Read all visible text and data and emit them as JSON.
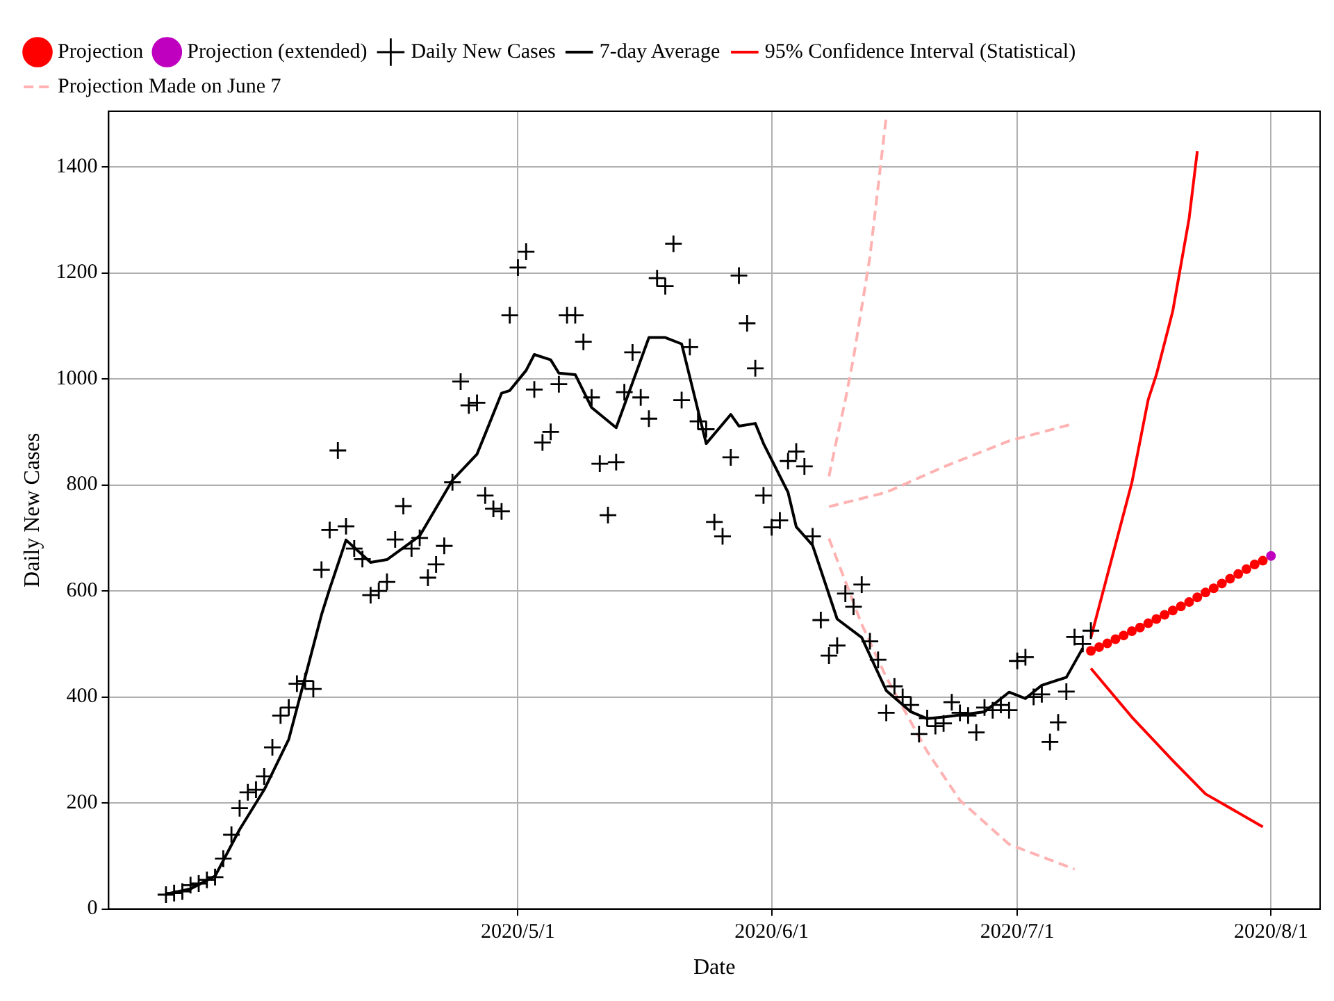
{
  "chart_data": {
    "type": "line",
    "xlabel": "Date",
    "ylabel": "Daily New Cases",
    "xlim": [
      "2020-03-12",
      "2020-08-07"
    ],
    "ylim": [
      0,
      1505
    ],
    "xticks": [
      {
        "value": "2020-05-01",
        "label": "2020/5/1"
      },
      {
        "value": "2020-06-01",
        "label": "2020/6/1"
      },
      {
        "value": "2020-07-01",
        "label": "2020/7/1"
      },
      {
        "value": "2020-08-01",
        "label": "2020/8/1"
      }
    ],
    "yticks": [
      0,
      200,
      400,
      600,
      800,
      1000,
      1200,
      1400
    ],
    "grid": true,
    "legend": "top",
    "series": [
      {
        "name": "Projection",
        "type": "scatter",
        "marker": "circle",
        "color": "#ff0000",
        "x": [
          "2020-07-10",
          "2020-07-11",
          "2020-07-12",
          "2020-07-13",
          "2020-07-14",
          "2020-07-15",
          "2020-07-16",
          "2020-07-17",
          "2020-07-18",
          "2020-07-19",
          "2020-07-20",
          "2020-07-21",
          "2020-07-22",
          "2020-07-23",
          "2020-07-24",
          "2020-07-25",
          "2020-07-26",
          "2020-07-27",
          "2020-07-28",
          "2020-07-29",
          "2020-07-30",
          "2020-07-31"
        ],
        "values": [
          487,
          494,
          501,
          509,
          516,
          524,
          531,
          539,
          547,
          555,
          563,
          571,
          579,
          588,
          597,
          605,
          614,
          623,
          632,
          641,
          650,
          657
        ]
      },
      {
        "name": "Projection (extended)",
        "type": "scatter",
        "marker": "circle",
        "color": "#bf00bf",
        "x": [
          "2020-08-01"
        ],
        "values": [
          666
        ]
      },
      {
        "name": "Daily New Cases",
        "type": "scatter",
        "marker": "cross",
        "color": "#000000",
        "x": [
          "2020-03-19",
          "2020-03-20",
          "2020-03-21",
          "2020-03-22",
          "2020-03-23",
          "2020-03-24",
          "2020-03-25",
          "2020-03-26",
          "2020-03-27",
          "2020-03-28",
          "2020-03-29",
          "2020-03-30",
          "2020-03-31",
          "2020-04-01",
          "2020-04-02",
          "2020-04-03",
          "2020-04-04",
          "2020-04-05",
          "2020-04-06",
          "2020-04-07",
          "2020-04-08",
          "2020-04-09",
          "2020-04-10",
          "2020-04-11",
          "2020-04-12",
          "2020-04-13",
          "2020-04-14",
          "2020-04-15",
          "2020-04-16",
          "2020-04-17",
          "2020-04-18",
          "2020-04-19",
          "2020-04-20",
          "2020-04-21",
          "2020-04-22",
          "2020-04-23",
          "2020-04-24",
          "2020-04-25",
          "2020-04-26",
          "2020-04-27",
          "2020-04-28",
          "2020-04-29",
          "2020-04-30",
          "2020-05-01",
          "2020-05-02",
          "2020-05-03",
          "2020-05-04",
          "2020-05-05",
          "2020-05-06",
          "2020-05-07",
          "2020-05-08",
          "2020-05-09",
          "2020-05-10",
          "2020-05-11",
          "2020-05-12",
          "2020-05-13",
          "2020-05-14",
          "2020-05-15",
          "2020-05-16",
          "2020-05-17",
          "2020-05-18",
          "2020-05-19",
          "2020-05-20",
          "2020-05-21",
          "2020-05-22",
          "2020-05-23",
          "2020-05-24",
          "2020-05-25",
          "2020-05-26",
          "2020-05-27",
          "2020-05-28",
          "2020-05-29",
          "2020-05-30",
          "2020-05-31",
          "2020-06-01",
          "2020-06-02",
          "2020-06-03",
          "2020-06-04",
          "2020-06-05",
          "2020-06-06",
          "2020-06-07",
          "2020-06-08",
          "2020-06-09",
          "2020-06-10",
          "2020-06-11",
          "2020-06-12",
          "2020-06-13",
          "2020-06-14",
          "2020-06-15",
          "2020-06-16",
          "2020-06-17",
          "2020-06-18",
          "2020-06-19",
          "2020-06-20",
          "2020-06-21",
          "2020-06-22",
          "2020-06-23",
          "2020-06-24",
          "2020-06-25",
          "2020-06-26",
          "2020-06-27",
          "2020-06-28",
          "2020-06-29",
          "2020-06-30",
          "2020-07-01",
          "2020-07-02",
          "2020-07-03",
          "2020-07-04",
          "2020-07-05",
          "2020-07-06",
          "2020-07-07",
          "2020-07-08",
          "2020-07-09",
          "2020-07-10"
        ],
        "values": [
          27,
          30,
          33,
          45,
          48,
          55,
          60,
          95,
          140,
          190,
          220,
          225,
          250,
          305,
          365,
          380,
          425,
          430,
          415,
          640,
          715,
          865,
          722,
          680,
          660,
          592,
          600,
          617,
          697,
          760,
          680,
          700,
          625,
          650,
          685,
          805,
          995,
          950,
          955,
          780,
          755,
          750,
          1120,
          1210,
          1240,
          980,
          880,
          900,
          990,
          1120,
          1120,
          1070,
          965,
          840,
          743,
          843,
          975,
          1050,
          965,
          925,
          1190,
          1175,
          1255,
          960,
          1060,
          920,
          905,
          730,
          703,
          852,
          1195,
          1105,
          1020,
          780,
          720,
          733,
          845,
          863,
          835,
          703,
          545,
          478,
          497,
          595,
          570,
          612,
          505,
          470,
          370,
          420,
          400,
          385,
          330,
          360,
          345,
          350,
          390,
          370,
          365,
          333,
          380,
          375,
          385,
          375,
          468,
          475,
          400,
          405,
          315,
          352,
          410,
          513,
          500,
          525
        ]
      },
      {
        "name": "7-day Average",
        "line_style": "solid",
        "color": "#000000",
        "x": [
          "2020-03-19",
          "2020-03-22",
          "2020-03-25",
          "2020-03-28",
          "2020-03-31",
          "2020-04-03",
          "2020-04-05",
          "2020-04-07",
          "2020-04-08",
          "2020-04-10",
          "2020-04-13",
          "2020-04-15",
          "2020-04-19",
          "2020-04-23",
          "2020-04-26",
          "2020-04-27",
          "2020-04-29",
          "2020-04-30",
          "2020-05-02",
          "2020-05-03",
          "2020-05-05",
          "2020-05-06",
          "2020-05-08",
          "2020-05-10",
          "2020-05-13",
          "2020-05-17",
          "2020-05-19",
          "2020-05-21",
          "2020-05-24",
          "2020-05-27",
          "2020-05-28",
          "2020-05-30",
          "2020-05-31",
          "2020-06-03",
          "2020-06-04",
          "2020-06-06",
          "2020-06-09",
          "2020-06-12",
          "2020-06-15",
          "2020-06-18",
          "2020-06-20",
          "2020-06-22",
          "2020-06-27",
          "2020-06-30",
          "2020-07-02",
          "2020-07-04",
          "2020-07-07",
          "2020-07-09"
        ],
        "values": [
          28,
          38,
          62,
          150,
          225,
          320,
          437,
          555,
          604,
          696,
          654,
          659,
          704,
          809,
          858,
          896,
          973,
          978,
          1016,
          1046,
          1036,
          1011,
          1008,
          946,
          908,
          1078,
          1078,
          1066,
          878,
          933,
          911,
          916,
          878,
          786,
          721,
          686,
          547,
          512,
          412,
          372,
          359,
          362,
          372,
          409,
          397,
          422,
          437,
          492
        ]
      },
      {
        "name": "95% Confidence Interval (Statistical)",
        "line_style": "solid",
        "color": "#ff0000",
        "x": [
          "2020-07-10",
          "2020-07-12",
          "2020-07-15",
          "2020-07-17",
          "2020-07-18",
          "2020-07-20",
          "2020-07-22",
          "2020-07-23"
        ],
        "values": [
          512,
          629,
          804,
          961,
          1008,
          1128,
          1303,
          1430
        ]
      },
      {
        "line_style": "solid",
        "color": "#ff0000",
        "x": [
          "2020-07-10",
          "2020-07-15",
          "2020-07-20",
          "2020-07-24",
          "2020-07-31"
        ],
        "values": [
          454,
          362,
          280,
          217,
          155
        ]
      },
      {
        "name": "Projection Made on June 7",
        "line_style": "dashed",
        "color": "#ffb2b2",
        "x": [
          "2020-06-08",
          "2020-06-15",
          "2020-06-22",
          "2020-06-30",
          "2020-07-08"
        ],
        "values": [
          759,
          786,
          834,
          883,
          916
        ]
      },
      {
        "line_style": "dashed",
        "color": "#ffb2b2",
        "x": [
          "2020-06-08",
          "2020-06-09",
          "2020-06-10",
          "2020-06-11",
          "2020-06-13",
          "2020-06-15"
        ],
        "values": [
          816,
          890,
          960,
          1040,
          1230,
          1495
        ]
      },
      {
        "line_style": "dashed",
        "color": "#ffb2b2",
        "x": [
          "2020-06-08",
          "2020-06-12",
          "2020-06-15",
          "2020-06-20",
          "2020-06-24",
          "2020-06-30",
          "2020-07-08"
        ],
        "values": [
          699,
          537,
          437,
          297,
          205,
          122,
          75
        ]
      }
    ]
  }
}
